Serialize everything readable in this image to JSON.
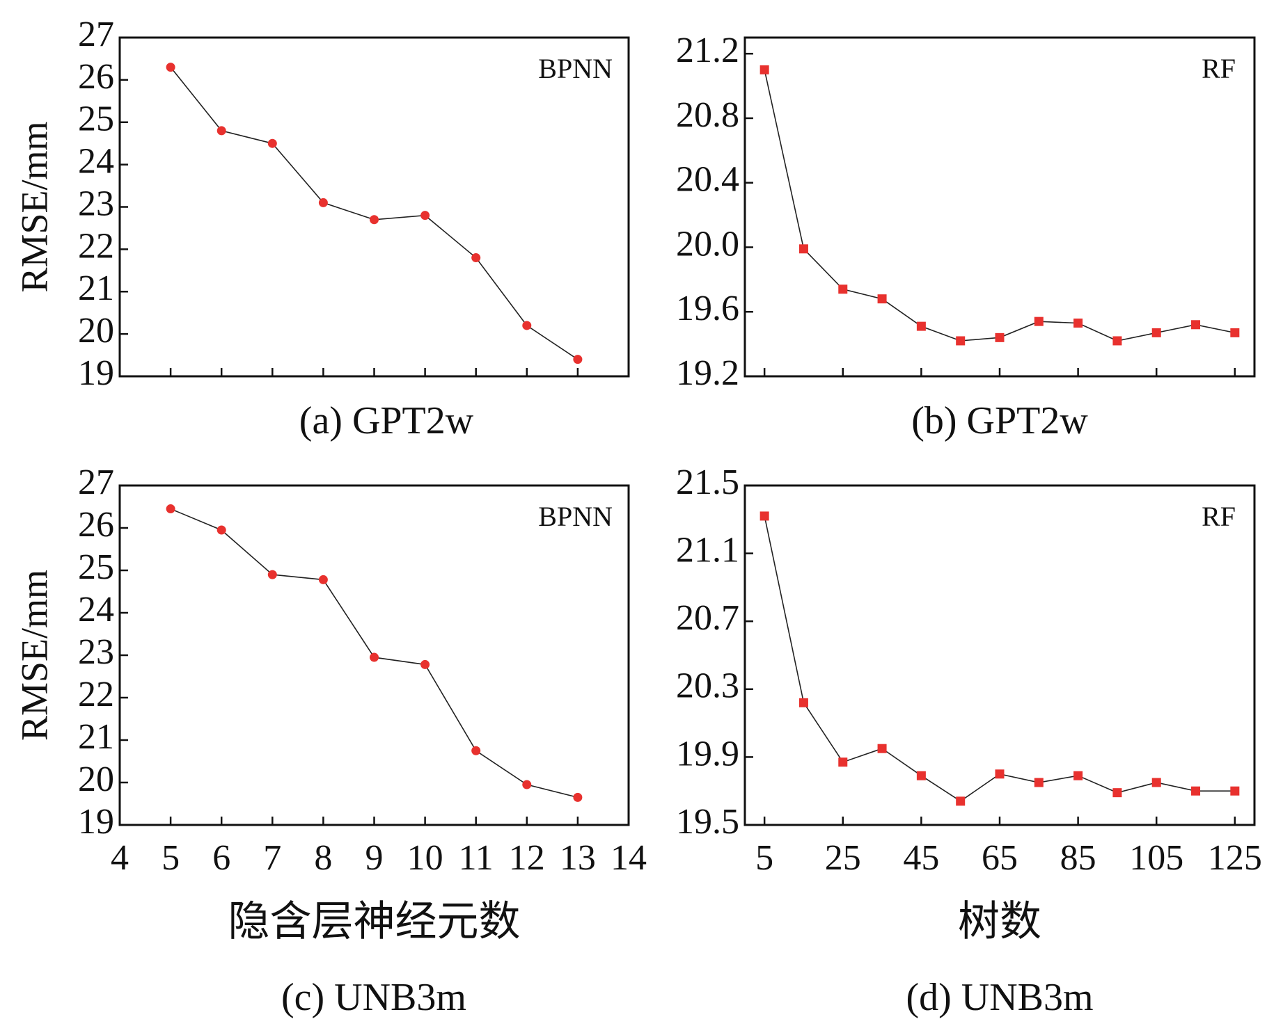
{
  "colors": {
    "marker": "#e8312e",
    "line": "#222222",
    "axis": "#111111"
  },
  "chart_data": [
    {
      "id": "a",
      "type": "line",
      "model_label": "BPNN",
      "caption": "(a) GPT2w",
      "ylabel": "RMSE/mm",
      "xlabel": "",
      "marker": "circle",
      "xlim": [
        4,
        14
      ],
      "ylim": [
        19,
        27
      ],
      "yticks": [
        "19",
        "20",
        "21",
        "22",
        "23",
        "24",
        "25",
        "26",
        "27"
      ],
      "ytick_values": [
        19,
        20,
        21,
        22,
        23,
        24,
        25,
        26,
        27
      ],
      "xtick_values": [
        5,
        6,
        7,
        8,
        9,
        10,
        11,
        12,
        13
      ],
      "xtick_labels": [],
      "x": [
        5,
        6,
        7,
        8,
        9,
        10,
        11,
        12,
        13
      ],
      "y": [
        26.3,
        24.8,
        24.5,
        23.1,
        22.7,
        22.8,
        21.8,
        20.2,
        19.4
      ]
    },
    {
      "id": "b",
      "type": "line",
      "model_label": "RF",
      "caption": "(b) GPT2w",
      "ylabel": "",
      "xlabel": "",
      "marker": "square",
      "xlim": [
        0,
        130
      ],
      "ylim": [
        19.2,
        21.3
      ],
      "yticks": [
        "19.2",
        "19.6",
        "20.0",
        "20.4",
        "20.8",
        "21.2"
      ],
      "ytick_values": [
        19.2,
        19.6,
        20.0,
        20.4,
        20.8,
        21.2
      ],
      "xtick_values": [
        5,
        25,
        45,
        65,
        85,
        105,
        125
      ],
      "xtick_labels": [],
      "x": [
        5,
        15,
        25,
        35,
        45,
        55,
        65,
        75,
        85,
        95,
        105,
        115,
        125
      ],
      "y": [
        21.1,
        19.99,
        19.74,
        19.68,
        19.51,
        19.42,
        19.44,
        19.54,
        19.53,
        19.42,
        19.47,
        19.52,
        19.47
      ]
    },
    {
      "id": "c",
      "type": "line",
      "model_label": "BPNN",
      "caption": "(c) UNB3m",
      "ylabel": "RMSE/mm",
      "xlabel": "隐含层神经元数",
      "marker": "circle",
      "xlim": [
        4,
        14
      ],
      "ylim": [
        19,
        27
      ],
      "yticks": [
        "19",
        "20",
        "21",
        "22",
        "23",
        "24",
        "25",
        "26",
        "27"
      ],
      "ytick_values": [
        19,
        20,
        21,
        22,
        23,
        24,
        25,
        26,
        27
      ],
      "xtick_values": [
        4,
        5,
        6,
        7,
        8,
        9,
        10,
        11,
        12,
        13,
        14
      ],
      "xtick_labels": [
        "4",
        "5",
        "6",
        "7",
        "8",
        "9",
        "10",
        "11",
        "12",
        "13",
        "14"
      ],
      "x": [
        5,
        6,
        7,
        8,
        9,
        10,
        11,
        12,
        13
      ],
      "y": [
        26.45,
        25.95,
        24.9,
        24.78,
        22.95,
        22.78,
        20.75,
        19.95,
        19.65
      ]
    },
    {
      "id": "d",
      "type": "line",
      "model_label": "RF",
      "caption": "(d) UNB3m",
      "ylabel": "",
      "xlabel": "树数",
      "marker": "square",
      "xlim": [
        0,
        130
      ],
      "ylim": [
        19.5,
        21.5
      ],
      "yticks": [
        "19.5",
        "19.9",
        "20.3",
        "20.7",
        "21.1",
        "21.5"
      ],
      "ytick_values": [
        19.5,
        19.9,
        20.3,
        20.7,
        21.1,
        21.5
      ],
      "xtick_values": [
        5,
        25,
        45,
        65,
        85,
        105,
        125
      ],
      "xtick_labels": [
        "5",
        "25",
        "45",
        "65",
        "85",
        "105",
        "125"
      ],
      "x": [
        5,
        15,
        25,
        35,
        45,
        55,
        65,
        75,
        85,
        95,
        105,
        115,
        125
      ],
      "y": [
        21.32,
        20.22,
        19.87,
        19.95,
        19.79,
        19.64,
        19.8,
        19.75,
        19.79,
        19.69,
        19.75,
        19.7,
        19.7
      ]
    }
  ]
}
